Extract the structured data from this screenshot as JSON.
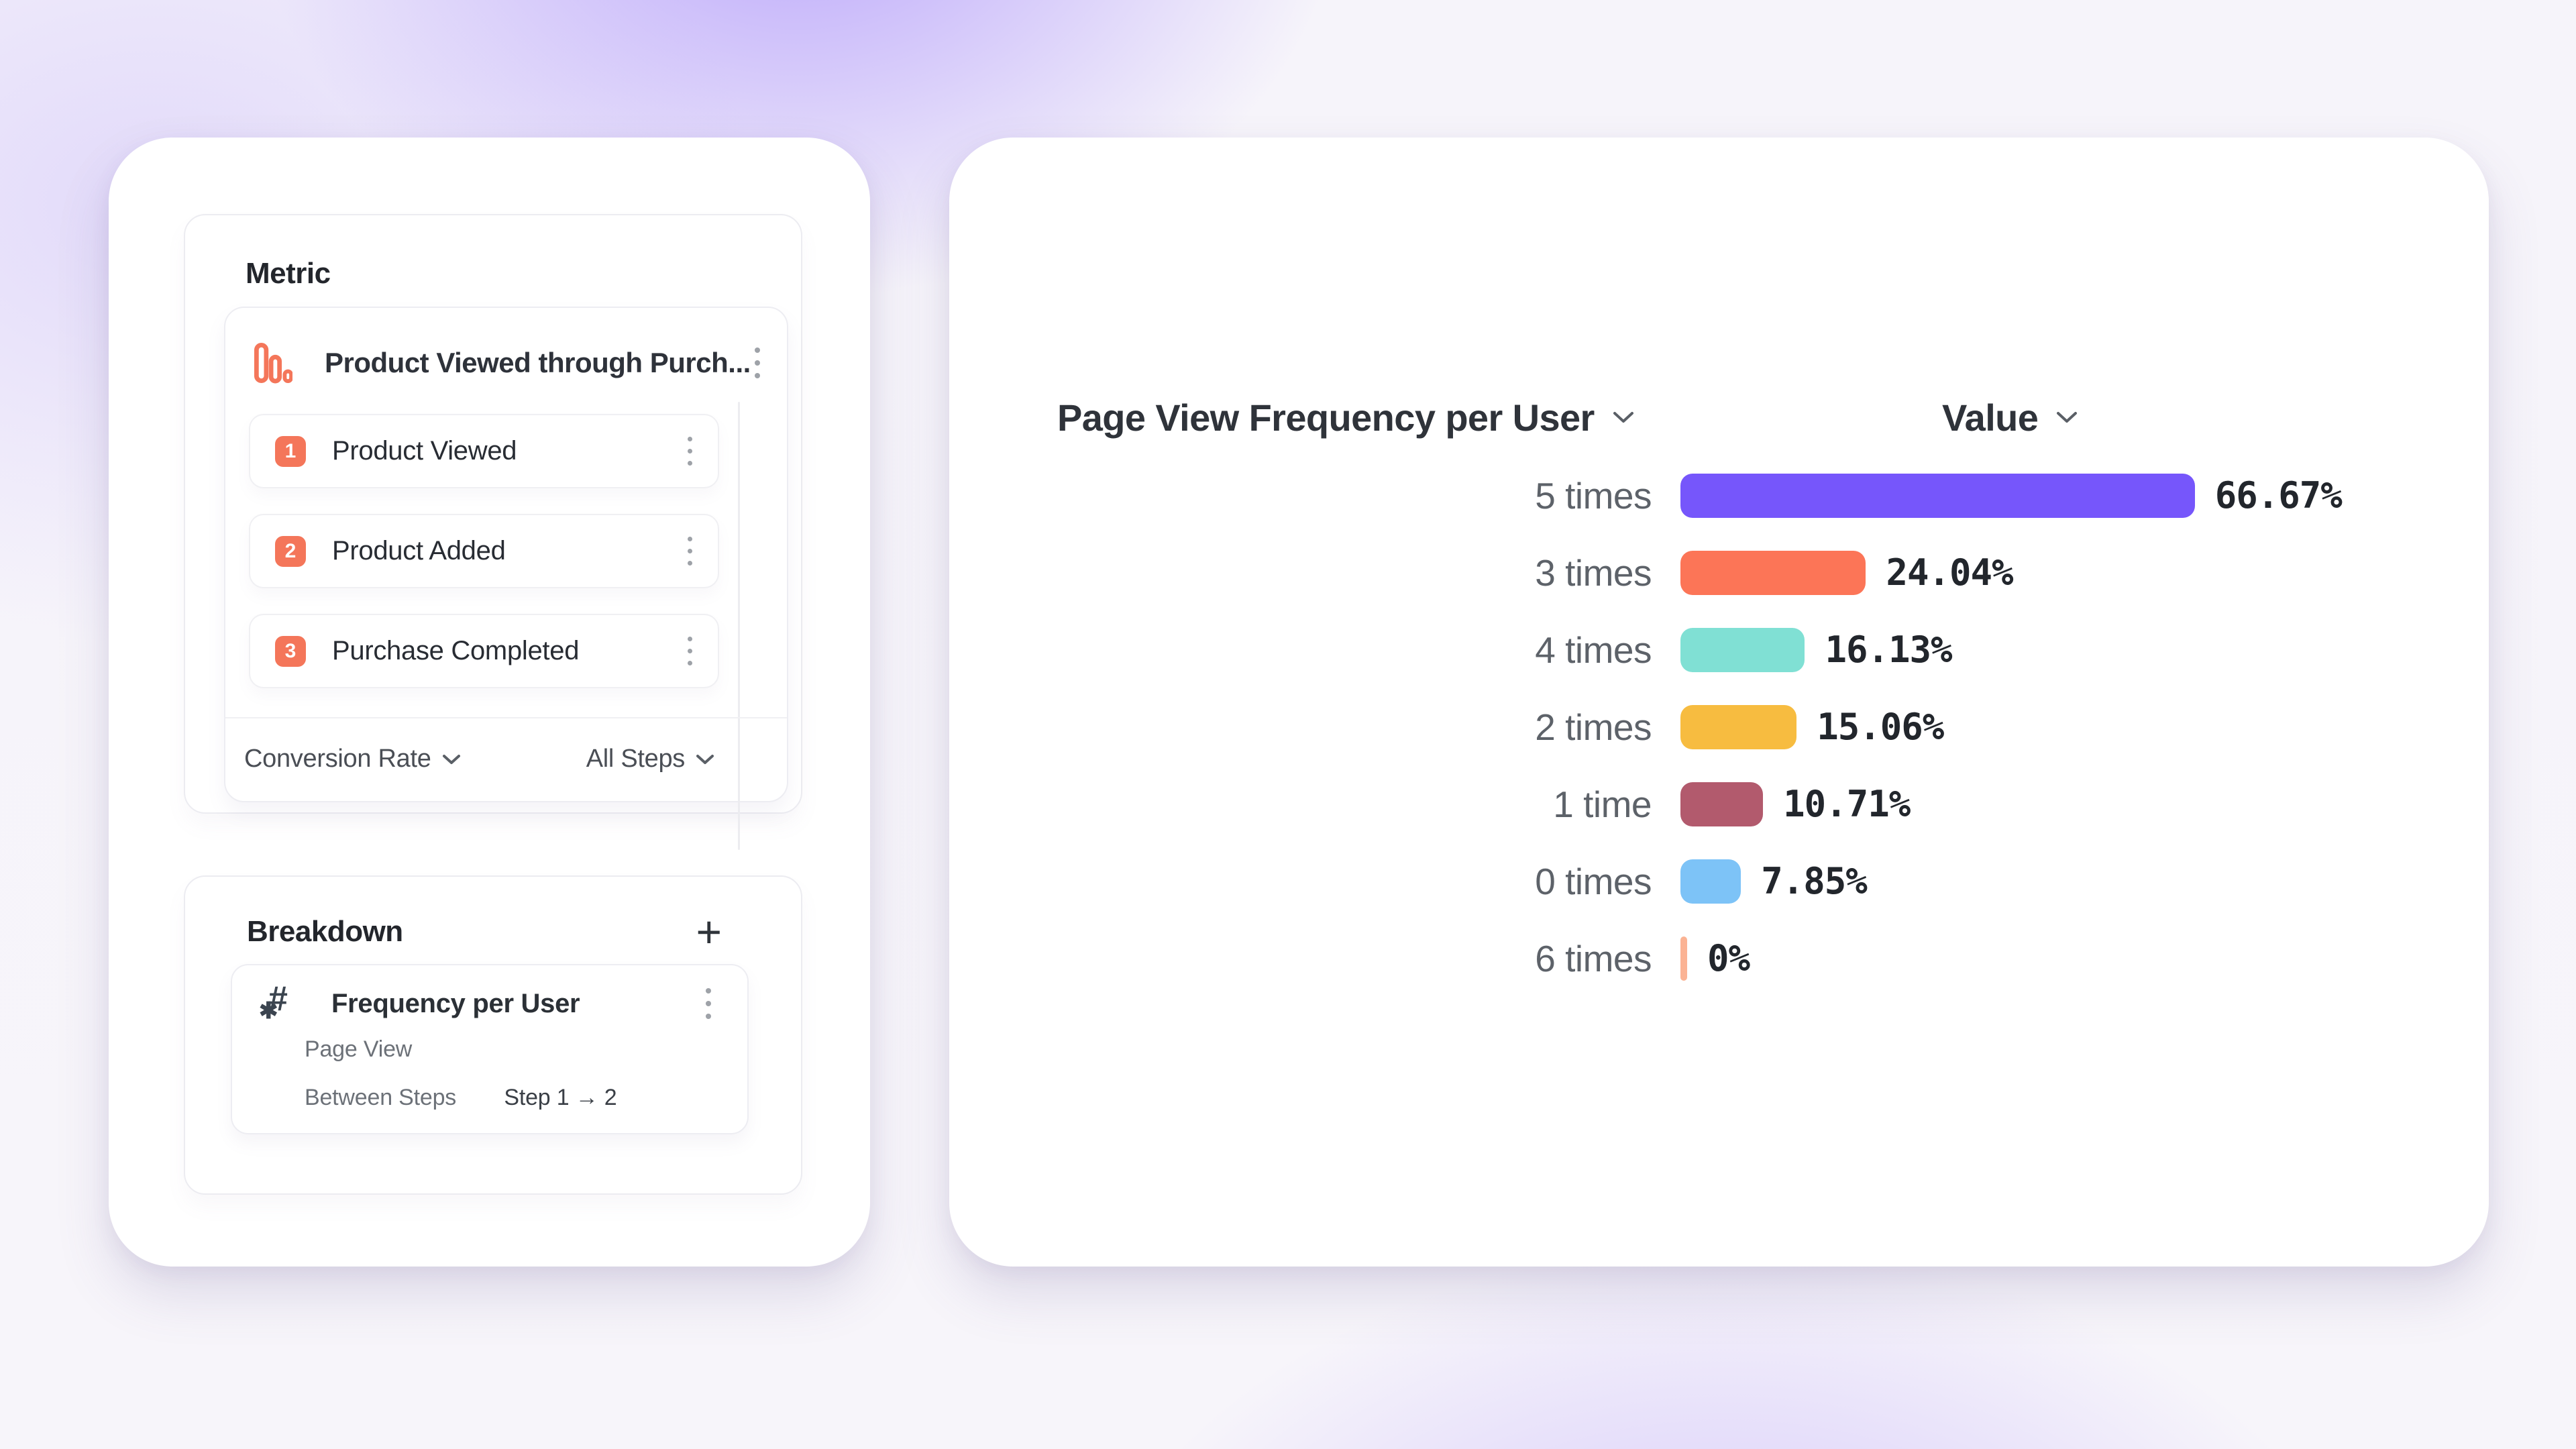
{
  "icons": {
    "hash_glyph": "#",
    "asterisk_glyph": "✱"
  },
  "left_panel": {
    "metric": {
      "title": "Metric",
      "event": {
        "icon": "funnel-bars-icon",
        "icon_color": "#F4765A",
        "title": "Product Viewed through Purch...",
        "step_badge_color": "#F4765A",
        "steps": [
          {
            "number": "1",
            "label": "Product Viewed"
          },
          {
            "number": "2",
            "label": "Product Added"
          },
          {
            "number": "3",
            "label": "Purchase Completed"
          }
        ],
        "footer": {
          "conversion_label": "Conversion Rate",
          "steps_label": "All Steps"
        }
      }
    },
    "breakdown": {
      "title": "Breakdown",
      "add_label": "+",
      "item": {
        "icon": "hash-asterisk-icon",
        "title": "Frequency per User",
        "event": "Page View",
        "mode": "Between Steps",
        "range": "Step 1 → 2"
      }
    }
  },
  "chart": {
    "series_label": "Page View Frequency per User",
    "value_label": "Value"
  },
  "chart_data": {
    "type": "bar",
    "orientation": "horizontal",
    "title": "Page View Frequency per User",
    "value_axis_label": "Value",
    "unit": "%",
    "xlim": [
      0,
      100
    ],
    "legend": "none",
    "grid": false,
    "rows": [
      {
        "category": "5 times",
        "value": 66.67,
        "label": "66.67%",
        "color": "#7656FB"
      },
      {
        "category": "3 times",
        "value": 24.04,
        "label": "24.04%",
        "color": "#FC7557"
      },
      {
        "category": "4 times",
        "value": 16.13,
        "label": "16.13%",
        "color": "#80E0D4"
      },
      {
        "category": "2 times",
        "value": 15.06,
        "label": "15.06%",
        "color": "#F7BC40"
      },
      {
        "category": "1 time",
        "value": 10.71,
        "label": "10.71%",
        "color": "#B25A6D"
      },
      {
        "category": "0 times",
        "value": 7.85,
        "label": "7.85%",
        "color": "#7DC3F7"
      },
      {
        "category": "6 times",
        "value": 0,
        "label": "0%",
        "color": "#FBB394"
      }
    ]
  }
}
